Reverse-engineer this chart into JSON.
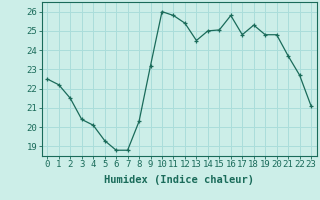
{
  "x": [
    0,
    1,
    2,
    3,
    4,
    5,
    6,
    7,
    8,
    9,
    10,
    11,
    12,
    13,
    14,
    15,
    16,
    17,
    18,
    19,
    20,
    21,
    22,
    23
  ],
  "y": [
    22.5,
    22.2,
    21.5,
    20.4,
    20.1,
    19.3,
    18.8,
    18.8,
    20.3,
    23.2,
    26.0,
    25.8,
    25.4,
    24.5,
    25.0,
    25.05,
    25.8,
    24.8,
    25.3,
    24.8,
    24.8,
    23.7,
    22.7,
    21.1
  ],
  "line_color": "#1a6b5a",
  "marker": "+",
  "bg_color": "#cceee8",
  "grid_color": "#aaddda",
  "xlabel": "Humidex (Indice chaleur)",
  "xlim": [
    -0.5,
    23.5
  ],
  "ylim": [
    18.5,
    26.5
  ],
  "yticks": [
    19,
    20,
    21,
    22,
    23,
    24,
    25,
    26
  ],
  "xticks": [
    0,
    1,
    2,
    3,
    4,
    5,
    6,
    7,
    8,
    9,
    10,
    11,
    12,
    13,
    14,
    15,
    16,
    17,
    18,
    19,
    20,
    21,
    22,
    23
  ],
  "tick_fontsize": 6.5,
  "xlabel_fontsize": 7.5,
  "text_color": "#1a6b5a"
}
